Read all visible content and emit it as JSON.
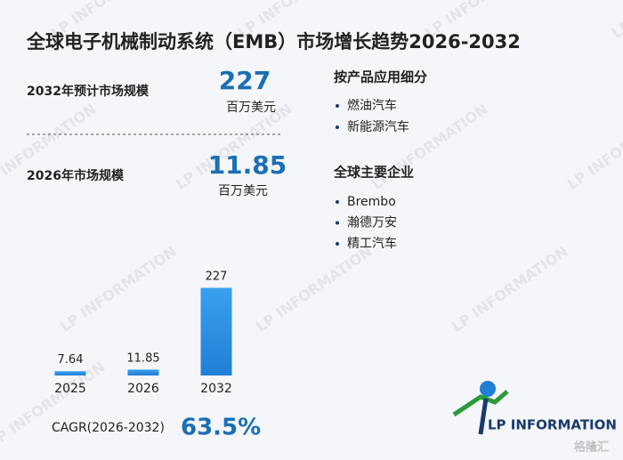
{
  "title": "全球电子机械制动系统（EMB）市场增长趋势2026-2032",
  "stats": [
    {
      "label": "2032年预计市场规模",
      "value": "227",
      "unit": "百万美元"
    },
    {
      "label": "2026年市场规模",
      "value": "11.85",
      "unit": "百万美元"
    }
  ],
  "segments": {
    "heading": "按产品应用细分",
    "items": [
      "燃油汽车",
      "新能源汽车"
    ]
  },
  "companies": {
    "heading": "全球主要企业",
    "items": [
      "Brembo",
      "瀚德万安",
      "精工汽车"
    ]
  },
  "chart_data": {
    "type": "bar",
    "categories": [
      "2025",
      "2026",
      "2032"
    ],
    "values": [
      7.64,
      11.85,
      227
    ],
    "color": "#1f7fd4"
  },
  "cagr": {
    "label": "CAGR(2026-2032)",
    "value": "63.5%"
  },
  "logo": "LP INFORMATION",
  "source_watermark": "格隆汇"
}
